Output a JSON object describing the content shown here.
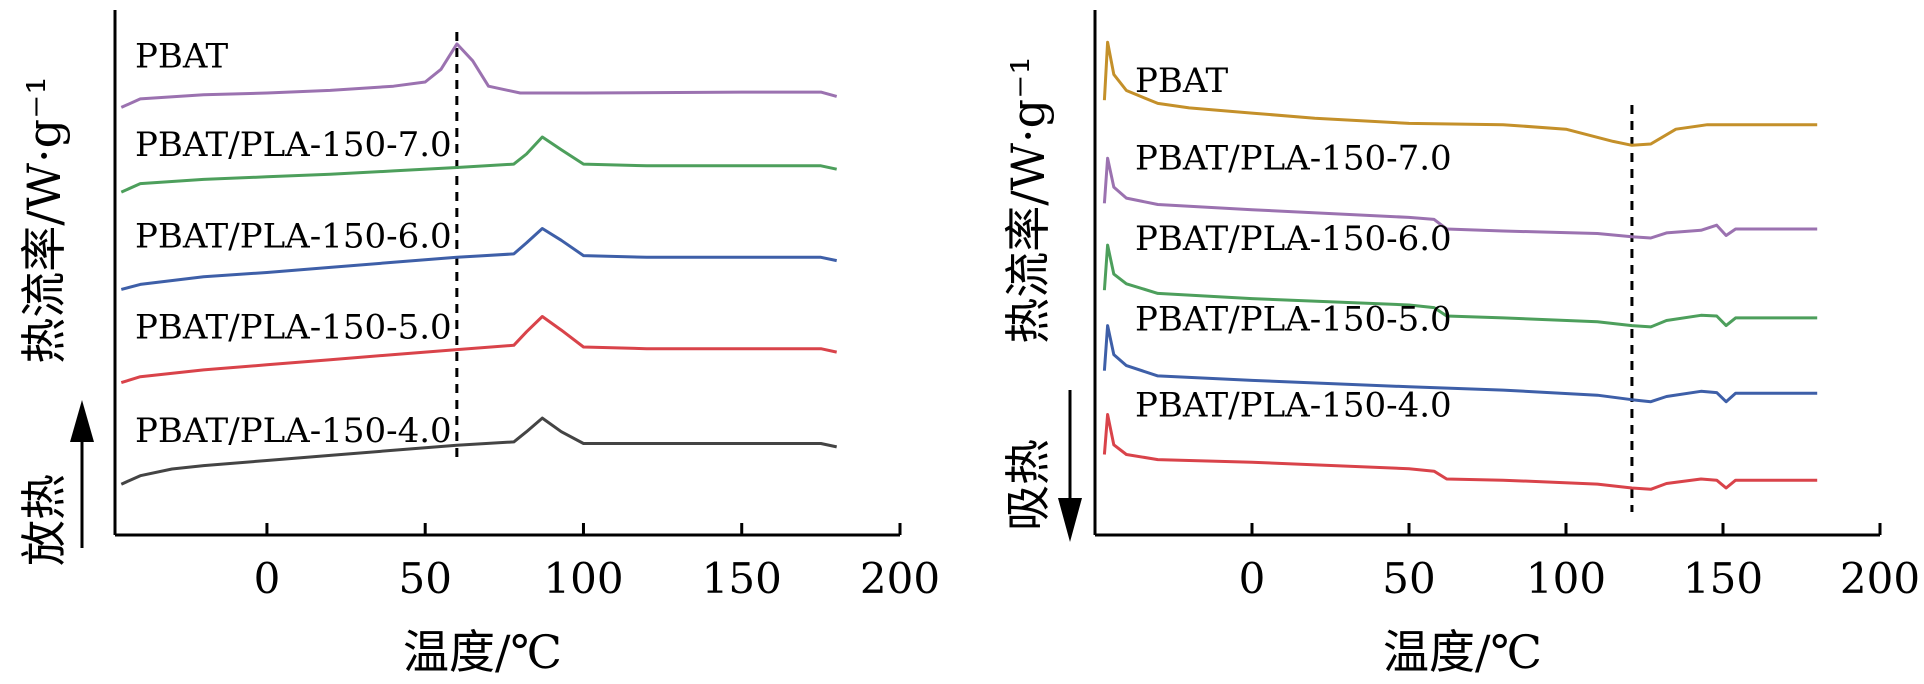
{
  "chart_data": [
    {
      "type": "line",
      "panel": "left",
      "xlabel": "温度/℃",
      "ylabel": "热流率/W·g⁻¹",
      "y_ticks_shown": false,
      "direction_label": "放热",
      "direction_arrow": "up",
      "xlim": [
        -48,
        200
      ],
      "xticks": [
        0,
        50,
        100,
        150,
        200
      ],
      "reference_line_x": 60,
      "series": [
        {
          "name": "PBAT",
          "color": "#9b72b0",
          "points": [
            [
              -46,
              5.45
            ],
            [
              -40,
              5.55
            ],
            [
              -20,
              5.6
            ],
            [
              0,
              5.62
            ],
            [
              20,
              5.65
            ],
            [
              40,
              5.7
            ],
            [
              50,
              5.75
            ],
            [
              55,
              5.9
            ],
            [
              60,
              6.2
            ],
            [
              65,
              6.0
            ],
            [
              70,
              5.7
            ],
            [
              80,
              5.62
            ],
            [
              100,
              5.62
            ],
            [
              150,
              5.63
            ],
            [
              175,
              5.63
            ],
            [
              180,
              5.58
            ]
          ]
        },
        {
          "name": "PBAT/PLA-150-7.0",
          "color": "#4d9f5c",
          "points": [
            [
              -46,
              4.45
            ],
            [
              -40,
              4.55
            ],
            [
              -20,
              4.6
            ],
            [
              0,
              4.63
            ],
            [
              20,
              4.66
            ],
            [
              40,
              4.7
            ],
            [
              60,
              4.74
            ],
            [
              78,
              4.78
            ],
            [
              82,
              4.9
            ],
            [
              87,
              5.1
            ],
            [
              93,
              4.95
            ],
            [
              100,
              4.78
            ],
            [
              120,
              4.76
            ],
            [
              150,
              4.76
            ],
            [
              175,
              4.76
            ],
            [
              180,
              4.72
            ]
          ]
        },
        {
          "name": "PBAT/PLA-150-6.0",
          "color": "#3e5fa8",
          "points": [
            [
              -46,
              3.3
            ],
            [
              -40,
              3.36
            ],
            [
              -20,
              3.45
            ],
            [
              0,
              3.5
            ],
            [
              20,
              3.56
            ],
            [
              40,
              3.62
            ],
            [
              60,
              3.68
            ],
            [
              78,
              3.72
            ],
            [
              82,
              3.85
            ],
            [
              87,
              4.02
            ],
            [
              93,
              3.88
            ],
            [
              100,
              3.7
            ],
            [
              120,
              3.68
            ],
            [
              150,
              3.68
            ],
            [
              175,
              3.68
            ],
            [
              180,
              3.64
            ]
          ]
        },
        {
          "name": "PBAT/PLA-150-5.0",
          "color": "#d9434a",
          "points": [
            [
              -46,
              2.2
            ],
            [
              -40,
              2.27
            ],
            [
              -20,
              2.35
            ],
            [
              0,
              2.41
            ],
            [
              20,
              2.47
            ],
            [
              40,
              2.53
            ],
            [
              60,
              2.59
            ],
            [
              78,
              2.64
            ],
            [
              82,
              2.8
            ],
            [
              87,
              2.98
            ],
            [
              93,
              2.82
            ],
            [
              100,
              2.62
            ],
            [
              120,
              2.6
            ],
            [
              150,
              2.6
            ],
            [
              175,
              2.6
            ],
            [
              180,
              2.56
            ]
          ]
        },
        {
          "name": "PBAT/PLA-150-4.0",
          "color": "#444444",
          "points": [
            [
              -46,
              1.0
            ],
            [
              -40,
              1.1
            ],
            [
              -30,
              1.18
            ],
            [
              -20,
              1.22
            ],
            [
              0,
              1.28
            ],
            [
              20,
              1.34
            ],
            [
              40,
              1.4
            ],
            [
              60,
              1.46
            ],
            [
              78,
              1.5
            ],
            [
              82,
              1.62
            ],
            [
              87,
              1.78
            ],
            [
              93,
              1.62
            ],
            [
              100,
              1.48
            ],
            [
              120,
              1.48
            ],
            [
              150,
              1.48
            ],
            [
              175,
              1.48
            ],
            [
              180,
              1.44
            ]
          ]
        }
      ]
    },
    {
      "type": "line",
      "panel": "right",
      "xlabel": "温度/℃",
      "ylabel": "热流率/W·g⁻¹",
      "y_ticks_shown": false,
      "direction_label": "吸热",
      "direction_arrow": "down",
      "xlim": [
        -50,
        200
      ],
      "xticks": [
        0,
        50,
        100,
        150,
        200
      ],
      "reference_line_x": 121,
      "series": [
        {
          "name": "PBAT",
          "color": "#c4902a",
          "points": [
            [
              -47,
              5.9
            ],
            [
              -46,
              6.8
            ],
            [
              -44,
              6.3
            ],
            [
              -40,
              6.05
            ],
            [
              -30,
              5.85
            ],
            [
              -20,
              5.78
            ],
            [
              0,
              5.7
            ],
            [
              20,
              5.62
            ],
            [
              50,
              5.54
            ],
            [
              80,
              5.52
            ],
            [
              100,
              5.45
            ],
            [
              115,
              5.26
            ],
            [
              121,
              5.2
            ],
            [
              127,
              5.22
            ],
            [
              135,
              5.45
            ],
            [
              145,
              5.52
            ],
            [
              180,
              5.52
            ]
          ]
        },
        {
          "name": "PBAT/PLA-150-7.0",
          "color": "#9b72b0",
          "points": [
            [
              -47,
              4.3
            ],
            [
              -46,
              5.0
            ],
            [
              -44,
              4.55
            ],
            [
              -40,
              4.38
            ],
            [
              -30,
              4.28
            ],
            [
              0,
              4.2
            ],
            [
              50,
              4.08
            ],
            [
              58,
              4.05
            ],
            [
              62,
              3.9
            ],
            [
              80,
              3.87
            ],
            [
              110,
              3.83
            ],
            [
              121,
              3.78
            ],
            [
              127,
              3.76
            ],
            [
              132,
              3.84
            ],
            [
              143,
              3.88
            ],
            [
              148,
              3.96
            ],
            [
              151,
              3.8
            ],
            [
              154,
              3.9
            ],
            [
              180,
              3.9
            ]
          ]
        },
        {
          "name": "PBAT/PLA-150-6.0",
          "color": "#4d9f5c",
          "points": [
            [
              -47,
              2.95
            ],
            [
              -46,
              3.65
            ],
            [
              -44,
              3.2
            ],
            [
              -40,
              3.05
            ],
            [
              -30,
              2.9
            ],
            [
              0,
              2.82
            ],
            [
              50,
              2.72
            ],
            [
              58,
              2.68
            ],
            [
              62,
              2.55
            ],
            [
              80,
              2.52
            ],
            [
              110,
              2.46
            ],
            [
              121,
              2.4
            ],
            [
              127,
              2.38
            ],
            [
              132,
              2.48
            ],
            [
              143,
              2.56
            ],
            [
              148,
              2.55
            ],
            [
              151,
              2.4
            ],
            [
              154,
              2.52
            ],
            [
              180,
              2.52
            ]
          ]
        },
        {
          "name": "PBAT/PLA-150-5.0",
          "color": "#3e5fa8",
          "points": [
            [
              -47,
              1.7
            ],
            [
              -46,
              2.4
            ],
            [
              -44,
              1.95
            ],
            [
              -40,
              1.78
            ],
            [
              -30,
              1.62
            ],
            [
              0,
              1.55
            ],
            [
              50,
              1.45
            ],
            [
              80,
              1.4
            ],
            [
              110,
              1.32
            ],
            [
              121,
              1.25
            ],
            [
              127,
              1.22
            ],
            [
              132,
              1.3
            ],
            [
              143,
              1.38
            ],
            [
              148,
              1.36
            ],
            [
              151,
              1.22
            ],
            [
              154,
              1.35
            ],
            [
              180,
              1.35
            ]
          ]
        },
        {
          "name": "PBAT/PLA-150-4.0",
          "color": "#d9434a",
          "points": [
            [
              -47,
              0.4
            ],
            [
              -46,
              1.02
            ],
            [
              -44,
              0.55
            ],
            [
              -40,
              0.4
            ],
            [
              -30,
              0.32
            ],
            [
              0,
              0.28
            ],
            [
              50,
              0.18
            ],
            [
              58,
              0.14
            ],
            [
              62,
              0.02
            ],
            [
              80,
              0.0
            ],
            [
              110,
              -0.06
            ],
            [
              121,
              -0.12
            ],
            [
              127,
              -0.14
            ],
            [
              132,
              -0.05
            ],
            [
              143,
              0.02
            ],
            [
              148,
              0.0
            ],
            [
              151,
              -0.12
            ],
            [
              154,
              0.0
            ],
            [
              180,
              0.0
            ]
          ]
        }
      ]
    }
  ]
}
